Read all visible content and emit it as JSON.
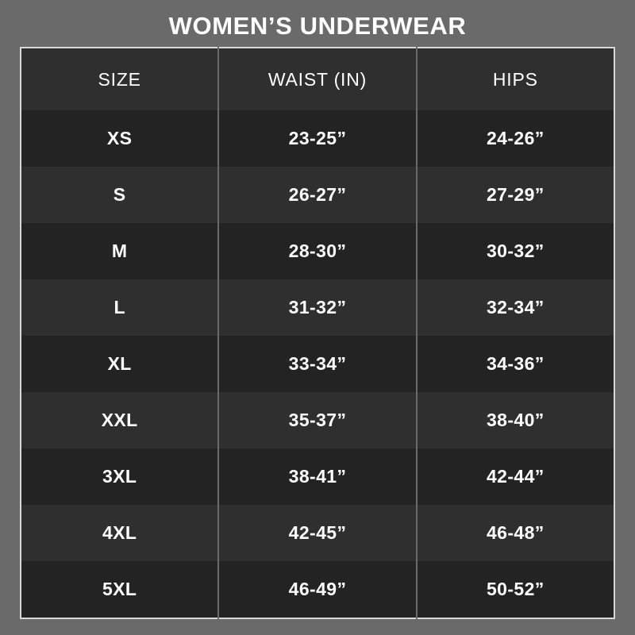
{
  "title": "WOMEN’S UNDERWEAR",
  "table": {
    "headers": [
      "SIZE",
      "WAIST (IN)",
      "HIPS"
    ],
    "rows": [
      {
        "size": "XS",
        "waist": "23-25”",
        "hips": "24-26”"
      },
      {
        "size": "S",
        "waist": "26-27”",
        "hips": "27-29”"
      },
      {
        "size": "M",
        "waist": "28-30”",
        "hips": "30-32”"
      },
      {
        "size": "L",
        "waist": "31-32”",
        "hips": "32-34”"
      },
      {
        "size": "XL",
        "waist": "33-34”",
        "hips": "34-36”"
      },
      {
        "size": "XXL",
        "waist": "35-37”",
        "hips": "38-40”"
      },
      {
        "size": "3XL",
        "waist": "38-41”",
        "hips": "42-44”"
      },
      {
        "size": "4XL",
        "waist": "42-45”",
        "hips": "46-48”"
      },
      {
        "size": "5XL",
        "waist": "46-49”",
        "hips": "50-52”"
      }
    ]
  },
  "colors": {
    "page_background": "#6a6a6a",
    "row_dark": "#232323",
    "row_light": "#2f2f2f",
    "table_border": "#d8d8d8",
    "column_divider": "#6a6a6a",
    "text": "#ffffff"
  },
  "chart_data": {
    "type": "table",
    "title": "WOMEN’S UNDERWEAR",
    "columns": [
      "SIZE",
      "WAIST (IN)",
      "HIPS"
    ],
    "rows": [
      [
        "XS",
        "23-25”",
        "24-26”"
      ],
      [
        "S",
        "26-27”",
        "27-29”"
      ],
      [
        "M",
        "28-30”",
        "30-32”"
      ],
      [
        "L",
        "31-32”",
        "32-34”"
      ],
      [
        "XL",
        "33-34”",
        "34-36”"
      ],
      [
        "XXL",
        "35-37”",
        "38-40”"
      ],
      [
        "3XL",
        "38-41”",
        "42-44”"
      ],
      [
        "4XL",
        "42-45”",
        "46-48”"
      ],
      [
        "5XL",
        "46-49”",
        "50-52”"
      ]
    ]
  }
}
